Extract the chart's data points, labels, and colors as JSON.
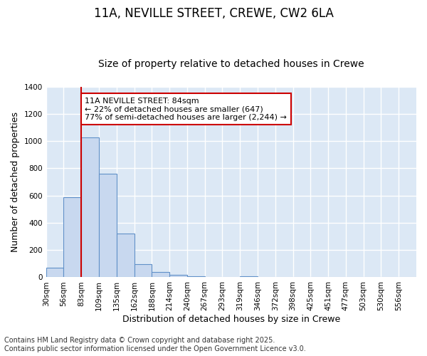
{
  "title": "11A, NEVILLE STREET, CREWE, CW2 6LA",
  "subtitle": "Size of property relative to detached houses in Crewe",
  "xlabel": "Distribution of detached houses by size in Crewe",
  "ylabel": "Number of detached properties",
  "categories": [
    "30sqm",
    "56sqm",
    "83sqm",
    "109sqm",
    "135sqm",
    "162sqm",
    "188sqm",
    "214sqm",
    "240sqm",
    "267sqm",
    "293sqm",
    "319sqm",
    "346sqm",
    "372sqm",
    "398sqm",
    "425sqm",
    "451sqm",
    "477sqm",
    "503sqm",
    "530sqm",
    "556sqm"
  ],
  "values": [
    70,
    590,
    1030,
    760,
    320,
    95,
    40,
    20,
    8,
    0,
    0,
    8,
    0,
    0,
    0,
    0,
    0,
    0,
    0,
    0,
    0
  ],
  "bar_color": "#c8d8ef",
  "bar_edge_color": "#6090c8",
  "vline_x": 2,
  "vline_color": "#cc0000",
  "annotation_text": "11A NEVILLE STREET: 84sqm\n← 22% of detached houses are smaller (647)\n77% of semi-detached houses are larger (2,244) →",
  "annotation_box_color": "#cc0000",
  "annotation_text_color": "#000000",
  "ylim": [
    0,
    1400
  ],
  "yticks": [
    0,
    200,
    400,
    600,
    800,
    1000,
    1200,
    1400
  ],
  "fig_bg_color": "#ffffff",
  "plot_bg_color": "#dce8f5",
  "grid_color": "#ffffff",
  "footer": "Contains HM Land Registry data © Crown copyright and database right 2025.\nContains public sector information licensed under the Open Government Licence v3.0.",
  "title_fontsize": 12,
  "subtitle_fontsize": 10,
  "axis_label_fontsize": 9,
  "tick_fontsize": 7.5,
  "annotation_fontsize": 8,
  "footer_fontsize": 7
}
